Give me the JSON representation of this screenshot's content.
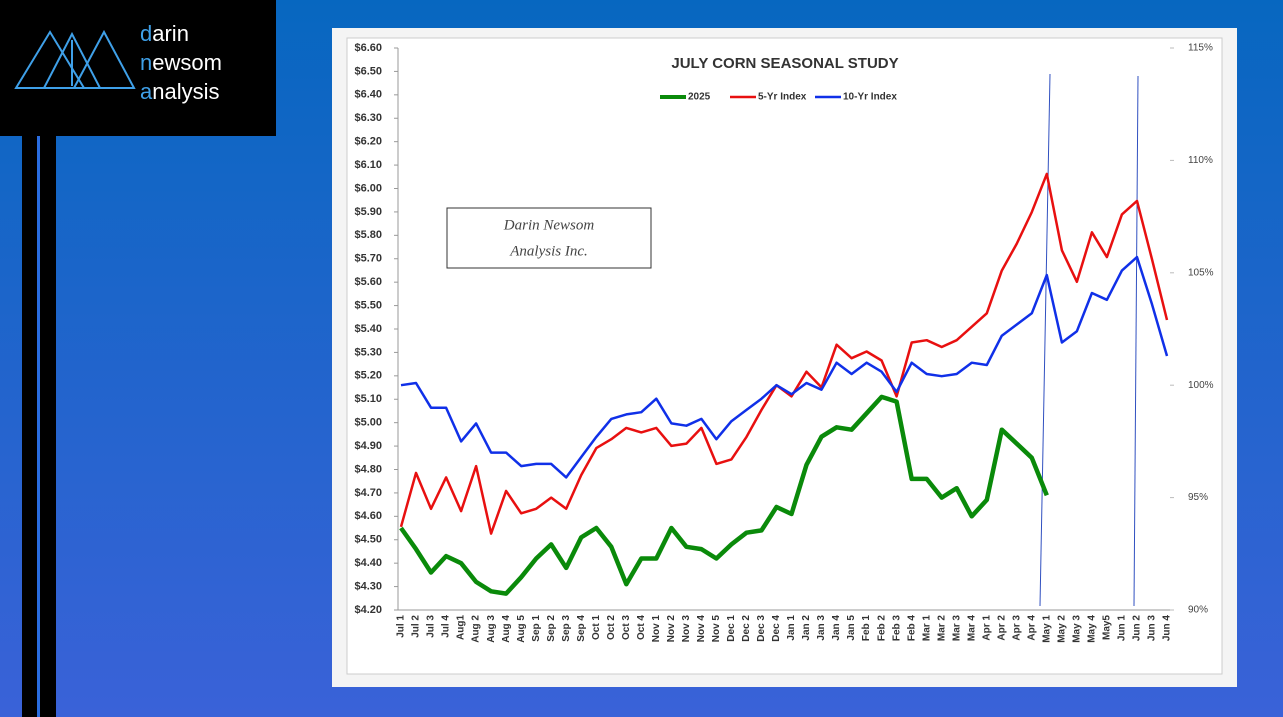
{
  "logo": {
    "lines": [
      [
        "d",
        "arin"
      ],
      [
        "n",
        "ewsom"
      ],
      [
        "a",
        "nalysis"
      ]
    ]
  },
  "chart_data": {
    "type": "line",
    "title": "JULY CORN SEASONAL STUDY",
    "annotations": [
      "Darin Newsom",
      "Analysis Inc."
    ],
    "legend": "top",
    "categories": [
      "Jul 1",
      "Jul 2",
      "Jul 3",
      "Jul 4",
      "Aug1",
      "Aug 2",
      "Aug 3",
      "Aug 4",
      "Aug 5",
      "Sep 1",
      "Sep 2",
      "Sep 3",
      "Sep 4",
      "Oct 1",
      "Oct 2",
      "Oct 3",
      "Oct 4",
      "Nov 1",
      "Nov 2",
      "Nov 3",
      "Nov 4",
      "Nov 5",
      "Dec 1",
      "Dec 2",
      "Dec 3",
      "Dec 4",
      "Jan 1",
      "Jan 2",
      "Jan 3",
      "Jan 4",
      "Jan 5",
      "Feb 1",
      "Feb 2",
      "Feb 3",
      "Feb 4",
      "Mar 1",
      "Mar 2",
      "Mar 3",
      "Mar 4",
      "Apr 1",
      "Apr 2",
      "Apr 3",
      "Apr 4",
      "May 1",
      "May 2",
      "May 3",
      "May 4",
      "May5",
      "Jun 1",
      "Jun 2",
      "Jun 3",
      "Jun 4"
    ],
    "series": [
      {
        "name": "2025",
        "color": "#0a8a0a",
        "axis": "y",
        "values": [
          4.55,
          4.46,
          4.36,
          4.43,
          4.4,
          4.32,
          4.28,
          4.27,
          4.34,
          4.42,
          4.48,
          4.38,
          4.51,
          4.55,
          4.47,
          4.31,
          4.42,
          4.42,
          4.55,
          4.47,
          4.46,
          4.42,
          4.48,
          4.53,
          4.54,
          4.64,
          4.61,
          4.82,
          4.94,
          4.98,
          4.97,
          5.04,
          5.11,
          5.09,
          4.76,
          4.76,
          4.68,
          4.72,
          4.6,
          4.67,
          4.97,
          4.91,
          4.85,
          4.69,
          null,
          null,
          null,
          null,
          null,
          null,
          null,
          null
        ]
      },
      {
        "name": "5-Yr Index",
        "color": "#e81010",
        "axis": "y2",
        "values": [
          93.7,
          96.1,
          94.5,
          95.9,
          94.4,
          96.4,
          93.4,
          95.3,
          94.3,
          94.5,
          95.0,
          94.5,
          96.0,
          97.2,
          97.6,
          98.1,
          97.9,
          98.1,
          97.3,
          97.4,
          98.1,
          96.5,
          96.7,
          97.7,
          98.9,
          100.0,
          99.5,
          100.6,
          99.9,
          101.8,
          101.2,
          101.5,
          101.1,
          99.5,
          101.9,
          102.0,
          101.7,
          102.0,
          102.6,
          103.2,
          105.1,
          106.3,
          107.7,
          109.4,
          106.0,
          104.6,
          106.8,
          105.7,
          107.6,
          108.2,
          105.6,
          102.9
        ]
      },
      {
        "name": "10-Yr Index",
        "color": "#1030e8",
        "axis": "y2",
        "values": [
          100.0,
          100.1,
          99.0,
          99.0,
          97.5,
          98.3,
          97.0,
          97.0,
          96.4,
          96.5,
          96.5,
          95.9,
          96.8,
          97.7,
          98.5,
          98.7,
          98.8,
          99.4,
          98.3,
          98.2,
          98.5,
          97.6,
          98.4,
          98.9,
          99.4,
          100.0,
          99.6,
          100.1,
          99.8,
          101.0,
          100.5,
          101.0,
          100.6,
          99.7,
          101.0,
          100.5,
          100.4,
          100.5,
          101.0,
          100.9,
          102.2,
          102.7,
          103.2,
          104.9,
          101.9,
          102.4,
          104.1,
          103.8,
          105.1,
          105.7,
          103.6,
          101.3
        ]
      }
    ],
    "ylim": [
      4.2,
      6.6
    ],
    "yticks": [
      {
        "value": 4.2,
        "label": "$4.20"
      },
      {
        "value": 4.3,
        "label": "$4.30"
      },
      {
        "value": 4.4,
        "label": "$4.40"
      },
      {
        "value": 4.5,
        "label": "$4.50"
      },
      {
        "value": 4.6,
        "label": "$4.60"
      },
      {
        "value": 4.7,
        "label": "$4.70"
      },
      {
        "value": 4.8,
        "label": "$4.80"
      },
      {
        "value": 4.9,
        "label": "$4.90"
      },
      {
        "value": 5.0,
        "label": "$5.00"
      },
      {
        "value": 5.1,
        "label": "$5.10"
      },
      {
        "value": 5.2,
        "label": "$5.20"
      },
      {
        "value": 5.3,
        "label": "$5.30"
      },
      {
        "value": 5.4,
        "label": "$5.40"
      },
      {
        "value": 5.5,
        "label": "$5.50"
      },
      {
        "value": 5.6,
        "label": "$5.60"
      },
      {
        "value": 5.7,
        "label": "$5.70"
      },
      {
        "value": 5.8,
        "label": "$5.80"
      },
      {
        "value": 5.9,
        "label": "$5.90"
      },
      {
        "value": 6.0,
        "label": "$6.00"
      },
      {
        "value": 6.1,
        "label": "$6.10"
      },
      {
        "value": 6.2,
        "label": "$6.20"
      },
      {
        "value": 6.3,
        "label": "$6.30"
      },
      {
        "value": 6.4,
        "label": "$6.40"
      },
      {
        "value": 6.5,
        "label": "$6.50"
      },
      {
        "value": 6.6,
        "label": "$6.60"
      }
    ],
    "y2lim": [
      90,
      115
    ],
    "y2ticks": [
      {
        "value": 90,
        "label": "90%"
      },
      {
        "value": 95,
        "label": "95%"
      },
      {
        "value": 100,
        "label": "100%"
      },
      {
        "value": 105,
        "label": "105%"
      },
      {
        "value": 110,
        "label": "110%"
      },
      {
        "value": 115,
        "label": "115%"
      }
    ]
  }
}
